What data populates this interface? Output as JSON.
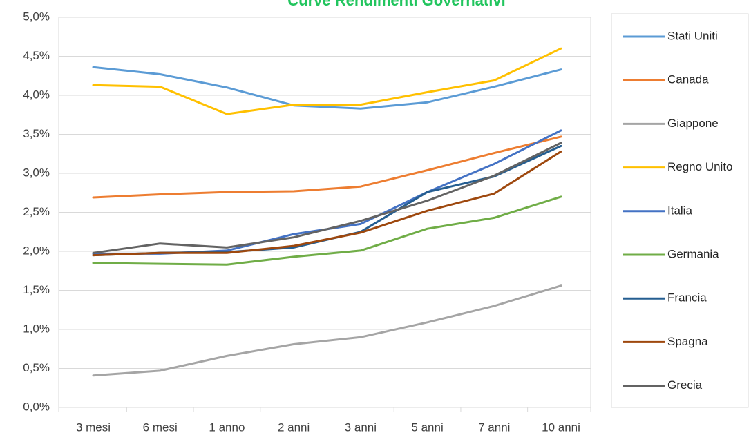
{
  "chart_data": {
    "type": "line",
    "title": "Curve Rendimenti Governativi",
    "title_color": "#22c55e",
    "categories": [
      "3 mesi",
      "6 mesi",
      "1 anno",
      "2 anni",
      "3 anni",
      "5 anni",
      "7 anni",
      "10 anni"
    ],
    "y_ticks": [
      "0,0%",
      "0,5%",
      "1,0%",
      "1,5%",
      "2,0%",
      "2,5%",
      "3,0%",
      "3,5%",
      "4,0%",
      "4,5%",
      "5,0%"
    ],
    "ylim": [
      0,
      5
    ],
    "y_unit": "%",
    "grid": true,
    "legend_position": "right",
    "series": [
      {
        "name": "Stati Uniti",
        "color": "#5b9bd5",
        "values": [
          4.36,
          4.27,
          4.1,
          3.87,
          3.83,
          3.91,
          4.11,
          4.33
        ]
      },
      {
        "name": "Canada",
        "color": "#ed7d31",
        "values": [
          2.69,
          2.73,
          2.76,
          2.77,
          2.83,
          3.04,
          3.26,
          3.47
        ]
      },
      {
        "name": "Giappone",
        "color": "#a5a5a5",
        "values": [
          0.41,
          0.47,
          0.66,
          0.81,
          0.9,
          1.09,
          1.3,
          1.56
        ]
      },
      {
        "name": "Regno Unito",
        "color": "#ffc000",
        "values": [
          4.13,
          4.11,
          3.76,
          3.88,
          3.88,
          4.04,
          4.19,
          4.6
        ]
      },
      {
        "name": "Italia",
        "color": "#4472c4",
        "values": [
          1.97,
          1.97,
          2.01,
          2.22,
          2.35,
          2.76,
          3.12,
          3.55
        ]
      },
      {
        "name": "Germania",
        "color": "#70ad47",
        "values": [
          1.85,
          1.84,
          1.83,
          1.93,
          2.01,
          2.29,
          2.43,
          2.7
        ]
      },
      {
        "name": "Francia",
        "color": "#255e91",
        "values": [
          1.95,
          1.98,
          1.99,
          2.05,
          2.25,
          2.76,
          2.96,
          3.35
        ]
      },
      {
        "name": "Spagna",
        "color": "#9e480e",
        "values": [
          1.95,
          1.98,
          1.98,
          2.07,
          2.24,
          2.52,
          2.74,
          3.28
        ]
      },
      {
        "name": "Grecia",
        "color": "#636363",
        "values": [
          1.98,
          2.1,
          2.05,
          2.18,
          2.39,
          2.65,
          2.97,
          3.39
        ]
      }
    ]
  }
}
